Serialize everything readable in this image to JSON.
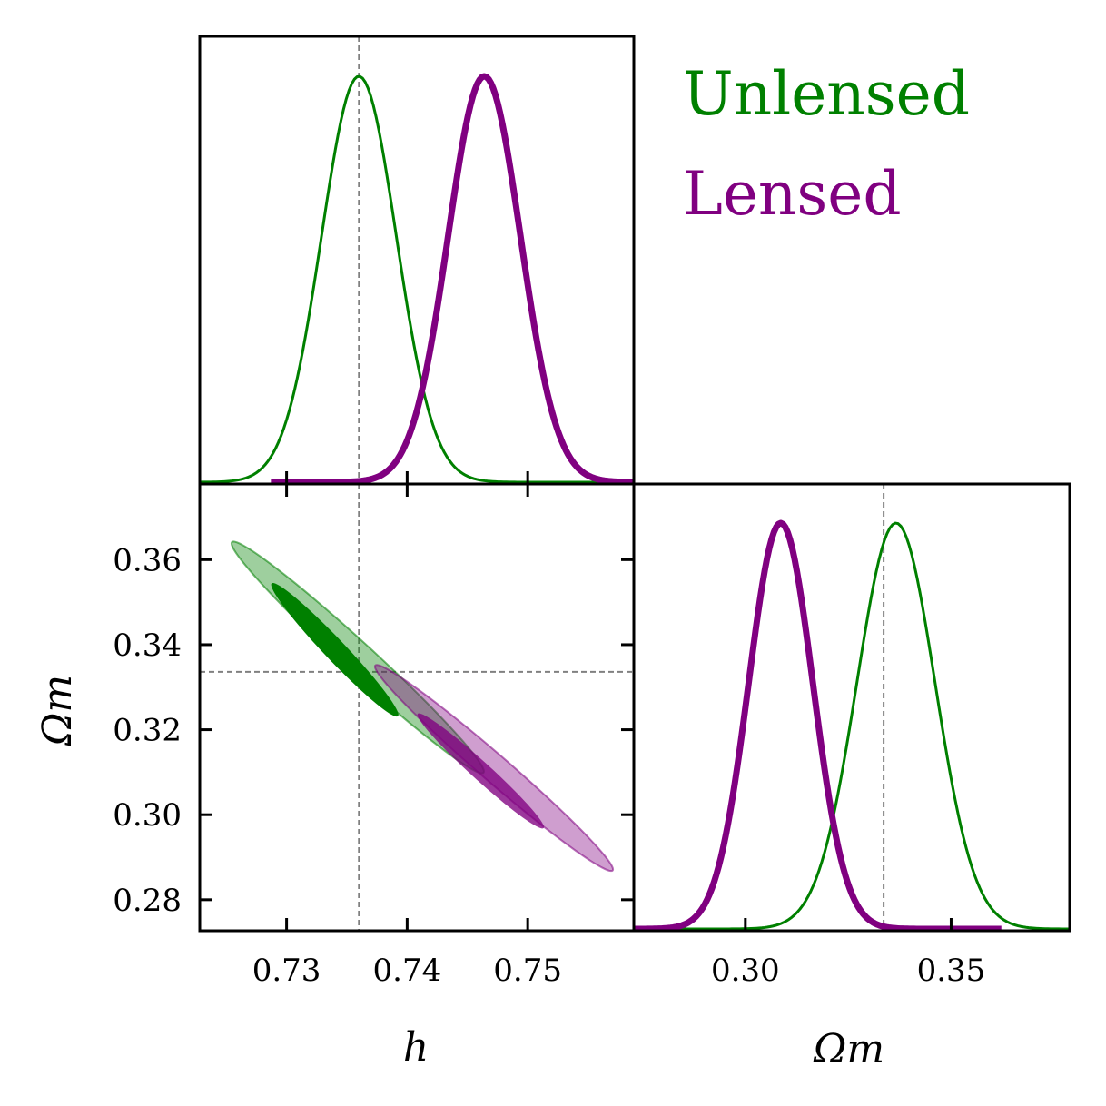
{
  "chart_data": {
    "type": "corner",
    "parameters": [
      {
        "name": "h",
        "label": "h",
        "range": [
          0.7228,
          0.7588
        ],
        "ticks": [
          0.73,
          0.74,
          0.75
        ],
        "tick_labels": [
          "0.73",
          "0.74",
          "0.75"
        ],
        "truth": 0.736
      },
      {
        "name": "Omega_m",
        "label": "Ωm",
        "range": [
          0.2727,
          0.3778
        ],
        "ticks": [
          0.28,
          0.3,
          0.32,
          0.34,
          0.36
        ],
        "tick_labels": [
          "0.28",
          "0.30",
          "0.32",
          "0.34",
          "0.36"
        ],
        "truth": 0.3336
      }
    ],
    "omega_1d_ticks": [
      0.3,
      0.35
    ],
    "omega_1d_tick_labels": [
      "0.30",
      "0.35"
    ],
    "omega_1d_range": [
      0.2729,
      0.3788
    ],
    "series": [
      {
        "name": "Unlensed",
        "color": "#008000",
        "line_width": "thin",
        "h_mean": 0.736,
        "h_sigma": 0.0031,
        "om_mean": 0.3366,
        "om_sigma": 0.0095,
        "contour_68": {
          "center": [
            0.734,
            0.3388
          ],
          "semi_major": [
            0.0052,
            -0.0157
          ],
          "semi_minor": [
            0.0009,
            0.0009
          ]
        },
        "contour_95": {
          "center": [
            0.7359,
            0.337
          ],
          "semi_major": [
            0.0104,
            -0.0272
          ],
          "semi_minor": [
            0.0012,
            0.0017
          ]
        }
      },
      {
        "name": "Lensed",
        "color": "#800080",
        "line_width": "thick",
        "h_mean": 0.7464,
        "h_sigma": 0.003,
        "om_mean": 0.3086,
        "om_sigma": 0.0078,
        "contour_68": {
          "center": [
            0.7461,
            0.3103
          ],
          "semi_major": [
            0.0052,
            -0.0135
          ],
          "semi_minor": [
            0.0007,
            0.0011
          ]
        },
        "contour_95": {
          "center": [
            0.7472,
            0.311
          ],
          "semi_major": [
            0.0098,
            -0.0242
          ],
          "semi_minor": [
            0.0012,
            0.0013
          ]
        }
      }
    ],
    "legend": {
      "entries": [
        "Unlensed",
        "Lensed"
      ],
      "placement": "top-right"
    },
    "grid": false
  }
}
